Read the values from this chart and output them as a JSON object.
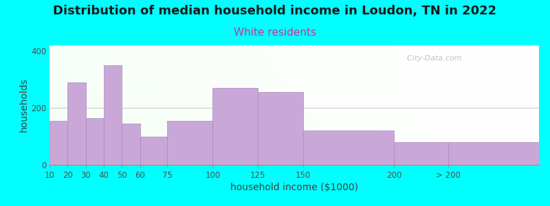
{
  "title": "Distribution of median household income in Loudon, TN in 2022",
  "subtitle": "White residents",
  "xlabel": "household income ($1000)",
  "ylabel": "households",
  "background_outer": "#00FFFF",
  "bar_color": "#C9A8D8",
  "bar_edge_color": "#A888C0",
  "bin_edges": [
    10,
    20,
    30,
    40,
    50,
    60,
    75,
    100,
    125,
    150,
    200,
    230,
    280
  ],
  "tick_positions": [
    10,
    20,
    30,
    40,
    50,
    60,
    75,
    100,
    125,
    150,
    200,
    230
  ],
  "tick_labels": [
    "10",
    "20",
    "30",
    "40",
    "50",
    "60",
    "75",
    "100",
    "125",
    "150",
    "200",
    "> 200"
  ],
  "values": [
    155,
    290,
    165,
    350,
    145,
    100,
    155,
    270,
    255,
    120,
    80,
    80
  ],
  "ylim": [
    0,
    420
  ],
  "yticks": [
    0,
    200,
    400
  ],
  "title_fontsize": 13,
  "subtitle_fontsize": 11,
  "subtitle_color": "#CC3399",
  "axis_label_fontsize": 10,
  "watermark": "  City-Data.com"
}
